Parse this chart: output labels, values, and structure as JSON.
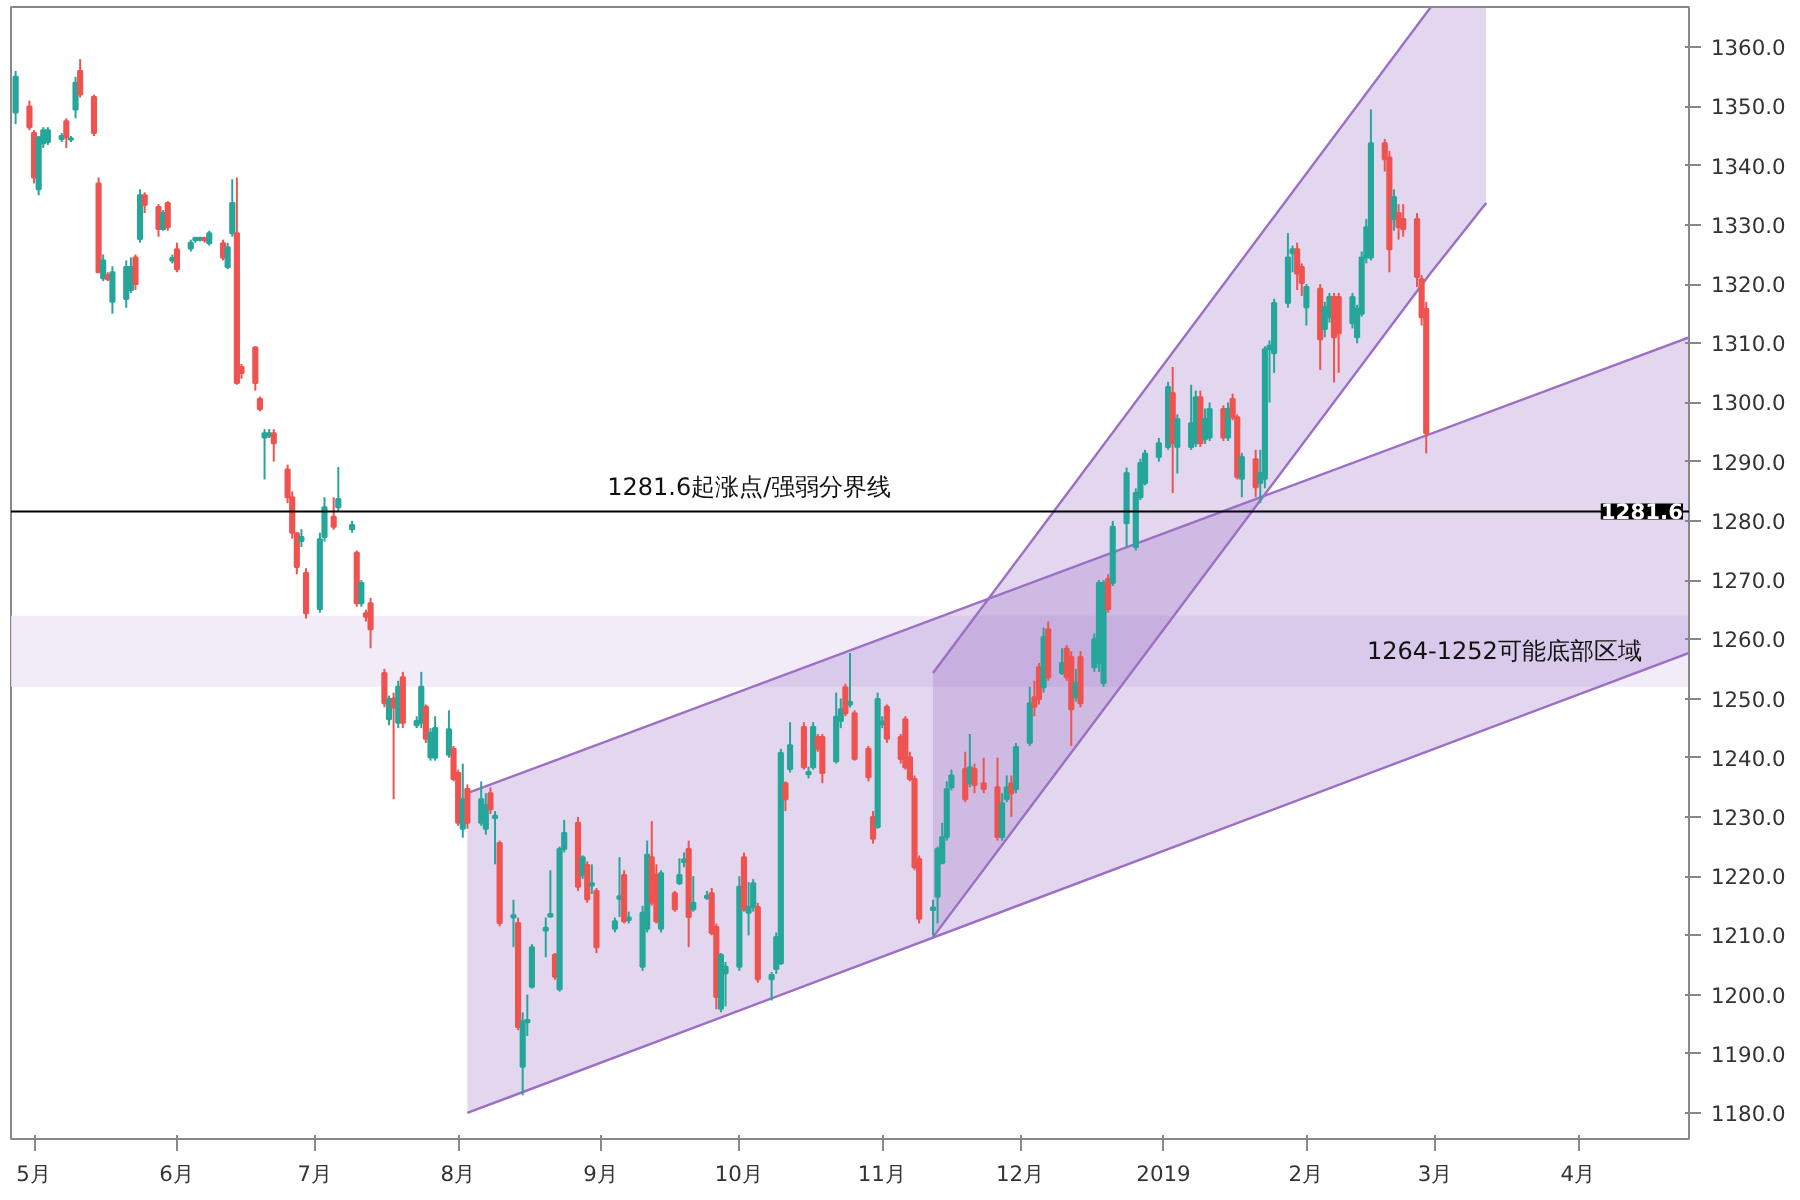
{
  "chart_data": {
    "type": "candlestick",
    "x": [
      "2018-04-27",
      "2018-04-30",
      "2018-05-01",
      "2018-05-02",
      "2018-05-03",
      "2018-05-04",
      "2018-05-07",
      "2018-05-08",
      "2018-05-09",
      "2018-05-10",
      "2018-05-11",
      "2018-05-14",
      "2018-05-15",
      "2018-05-16",
      "2018-05-17",
      "2018-05-18",
      "2018-05-21",
      "2018-05-22",
      "2018-05-23",
      "2018-05-24",
      "2018-05-25",
      "2018-05-28",
      "2018-05-29",
      "2018-05-30",
      "2018-05-31",
      "2018-06-01",
      "2018-06-04",
      "2018-06-05",
      "2018-06-06",
      "2018-06-07",
      "2018-06-08",
      "2018-06-11",
      "2018-06-12",
      "2018-06-13",
      "2018-06-14",
      "2018-06-15",
      "2018-06-18",
      "2018-06-19",
      "2018-06-20",
      "2018-06-21",
      "2018-06-22",
      "2018-06-25",
      "2018-06-26",
      "2018-06-27",
      "2018-06-28",
      "2018-06-29",
      "2018-07-02",
      "2018-07-03",
      "2018-07-05",
      "2018-07-06",
      "2018-07-09",
      "2018-07-10",
      "2018-07-11",
      "2018-07-12",
      "2018-07-13",
      "2018-07-16",
      "2018-07-17",
      "2018-07-18",
      "2018-07-19",
      "2018-07-20",
      "2018-07-23",
      "2018-07-24",
      "2018-07-25",
      "2018-07-26",
      "2018-07-27",
      "2018-07-30",
      "2018-07-31",
      "2018-08-01",
      "2018-08-02",
      "2018-08-03",
      "2018-08-06",
      "2018-08-07",
      "2018-08-08",
      "2018-08-09",
      "2018-08-10",
      "2018-08-13",
      "2018-08-14",
      "2018-08-15",
      "2018-08-16",
      "2018-08-17",
      "2018-08-20",
      "2018-08-21",
      "2018-08-22",
      "2018-08-23",
      "2018-08-24",
      "2018-08-27",
      "2018-08-28",
      "2018-08-29",
      "2018-08-30",
      "2018-08-31",
      "2018-09-04",
      "2018-09-05",
      "2018-09-06",
      "2018-09-07",
      "2018-09-10",
      "2018-09-11",
      "2018-09-12",
      "2018-09-13",
      "2018-09-14",
      "2018-09-17",
      "2018-09-18",
      "2018-09-19",
      "2018-09-20",
      "2018-09-21",
      "2018-09-24",
      "2018-09-25",
      "2018-09-26",
      "2018-09-27",
      "2018-09-28",
      "2018-10-01",
      "2018-10-02",
      "2018-10-03",
      "2018-10-04",
      "2018-10-05",
      "2018-10-08",
      "2018-10-09",
      "2018-10-10",
      "2018-10-11",
      "2018-10-12",
      "2018-10-15",
      "2018-10-16",
      "2018-10-17",
      "2018-10-18",
      "2018-10-19",
      "2018-10-22",
      "2018-10-23",
      "2018-10-24",
      "2018-10-25",
      "2018-10-26",
      "2018-10-29",
      "2018-10-30",
      "2018-10-31",
      "2018-11-01",
      "2018-11-02",
      "2018-11-05",
      "2018-11-06",
      "2018-11-07",
      "2018-11-08",
      "2018-11-09",
      "2018-11-12",
      "2018-11-13",
      "2018-11-14",
      "2018-11-15",
      "2018-11-16",
      "2018-11-19",
      "2018-11-20",
      "2018-11-21",
      "2018-11-23",
      "2018-11-26",
      "2018-11-27",
      "2018-11-28",
      "2018-11-29",
      "2018-11-30",
      "2018-12-03",
      "2018-12-04",
      "2018-12-05",
      "2018-12-06",
      "2018-12-07",
      "2018-12-10",
      "2018-12-11",
      "2018-12-12",
      "2018-12-13",
      "2018-12-14",
      "2018-12-17",
      "2018-12-18",
      "2018-12-19",
      "2018-12-20",
      "2018-12-21",
      "2018-12-24",
      "2018-12-26",
      "2018-12-27",
      "2018-12-28",
      "2018-12-31",
      "2019-01-02",
      "2019-01-03",
      "2019-01-04",
      "2019-01-07",
      "2019-01-08",
      "2019-01-09",
      "2019-01-10",
      "2019-01-11",
      "2019-01-14",
      "2019-01-15",
      "2019-01-16",
      "2019-01-17",
      "2019-01-18",
      "2019-01-21",
      "2019-01-22",
      "2019-01-23",
      "2019-01-24",
      "2019-01-25",
      "2019-01-28",
      "2019-01-29",
      "2019-01-30",
      "2019-01-31",
      "2019-02-01",
      "2019-02-04",
      "2019-02-05",
      "2019-02-06",
      "2019-02-07",
      "2019-02-08",
      "2019-02-11",
      "2019-02-12",
      "2019-02-13",
      "2019-02-14",
      "2019-02-15",
      "2019-02-18",
      "2019-02-19",
      "2019-02-20",
      "2019-02-21",
      "2019-02-22",
      "2019-02-25",
      "2019-02-26",
      "2019-02-27"
    ],
    "ohlc": [
      [
        1349,
        1356,
        1347,
        1355
      ],
      [
        1350,
        1351,
        1346,
        1346.5
      ],
      [
        1345.5,
        1346,
        1337,
        1338
      ],
      [
        1336,
        1345,
        1335,
        1344.8
      ],
      [
        1343.8,
        1346.5,
        1343,
        1346
      ],
      [
        1344,
        1346.5,
        1343.5,
        1346
      ],
      [
        1344.5,
        1345.5,
        1344,
        1345
      ],
      [
        1347.5,
        1348,
        1343,
        1344.8
      ],
      [
        1344.4,
        1345,
        1344,
        1344.6
      ],
      [
        1349.5,
        1355,
        1348,
        1354
      ],
      [
        1356,
        1358,
        1351.5,
        1352
      ],
      [
        1351.6,
        1352,
        1345,
        1345.5
      ],
      [
        1337,
        1338,
        1322,
        1322
      ],
      [
        1321,
        1325,
        1320.5,
        1324
      ],
      [
        1321.5,
        1322,
        1320.5,
        1320.8
      ],
      [
        1317,
        1323,
        1315,
        1322
      ],
      [
        1317.5,
        1324,
        1316,
        1322.9
      ],
      [
        1319,
        1324.5,
        1318.5,
        1322.9
      ],
      [
        1324.5,
        1325,
        1319,
        1320
      ],
      [
        1327.6,
        1336,
        1327,
        1335
      ],
      [
        1335,
        1335.5,
        1332,
        1333.4
      ],
      [
        1333,
        1333.5,
        1328,
        1329.3
      ],
      [
        1329.3,
        1332.5,
        1329,
        1332
      ],
      [
        1333.7,
        1334,
        1329,
        1329.6
      ],
      [
        1324,
        1325,
        1323.5,
        1324.4
      ],
      [
        1325.9,
        1327,
        1322,
        1322.5
      ],
      [
        1326,
        1327.5,
        1325.5,
        1327
      ],
      [
        1327.4,
        1328,
        1327,
        1327.8
      ],
      [
        1327.5,
        1328,
        1327.2,
        1327.8
      ],
      [
        1327.8,
        1328,
        1327,
        1327.4
      ],
      [
        1326.9,
        1329,
        1326.5,
        1328.6
      ],
      [
        1326.9,
        1327.5,
        1324,
        1324.5
      ],
      [
        1322.9,
        1327,
        1322.5,
        1326.2
      ],
      [
        1328.6,
        1337.7,
        1328,
        1333.7
      ],
      [
        1328.6,
        1338,
        1303,
        1303.3
      ],
      [
        1306,
        1306.5,
        1304,
        1305
      ],
      [
        1309.3,
        1309.5,
        1302,
        1303.3
      ],
      [
        1300.6,
        1301,
        1298.5,
        1298.9
      ],
      [
        1294.1,
        1295.5,
        1287,
        1294.8
      ],
      [
        1294.4,
        1295.5,
        1294,
        1294.8
      ],
      [
        1294.8,
        1295.5,
        1290,
        1293.1
      ],
      [
        1288.7,
        1289.5,
        1283,
        1284
      ],
      [
        1284,
        1285,
        1277,
        1278
      ],
      [
        1277.9,
        1278,
        1271,
        1272.2
      ],
      [
        1276.6,
        1278.6,
        1275.6,
        1277.3
      ],
      [
        1271.2,
        1272,
        1263.5,
        1264.4
      ],
      [
        1265.1,
        1278,
        1264.5,
        1276.9
      ],
      [
        1277.3,
        1284,
        1276.5,
        1282.3
      ],
      [
        1280.7,
        1284,
        1278.5,
        1279
      ],
      [
        1282.3,
        1289.1,
        1281.5,
        1283.7
      ],
      [
        1278.6,
        1280,
        1278,
        1279.3
      ],
      [
        1274.6,
        1275,
        1265.5,
        1266.1
      ],
      [
        1266.1,
        1270,
        1265.5,
        1269.5
      ],
      [
        1264.4,
        1265,
        1263,
        1263.8
      ],
      [
        1266.1,
        1267,
        1258.5,
        1261.7
      ],
      [
        1254.3,
        1255,
        1248.5,
        1249.2
      ],
      [
        1246.5,
        1250.5,
        1245.5,
        1249.9
      ],
      [
        1250,
        1251,
        1233,
        1248.5
      ],
      [
        1245.9,
        1253,
        1245,
        1252
      ],
      [
        1253.6,
        1254.5,
        1245,
        1245.9
      ],
      [
        1245.5,
        1247,
        1245,
        1246.2
      ],
      [
        1245.9,
        1254.5,
        1245,
        1252
      ],
      [
        1248.6,
        1249,
        1242.5,
        1243.2
      ],
      [
        1240.1,
        1245,
        1239.5,
        1244.2
      ],
      [
        1240,
        1247,
        1239.5,
        1245
      ],
      [
        1240.5,
        1248,
        1240,
        1244.8
      ],
      [
        1241.5,
        1242,
        1236,
        1236.4
      ],
      [
        1237.4,
        1238,
        1228.5,
        1229
      ],
      [
        1228,
        1239,
        1226.5,
        1233
      ],
      [
        1234.7,
        1235.5,
        1228,
        1229
      ],
      [
        1229,
        1236,
        1228.5,
        1233
      ],
      [
        1228,
        1234,
        1227,
        1232
      ],
      [
        1234,
        1235,
        1230.5,
        1231.3
      ],
      [
        1229.8,
        1231,
        1222,
        1230.2
      ],
      [
        1225.6,
        1226,
        1211.5,
        1212.1
      ],
      [
        1213,
        1216,
        1208,
        1213.4
      ],
      [
        1212.1,
        1213,
        1194,
        1194.5
      ],
      [
        1187.8,
        1197,
        1183,
        1195.5
      ],
      [
        1195.3,
        1200,
        1193,
        1195.7
      ],
      [
        1201.3,
        1208.5,
        1201,
        1208
      ],
      [
        1210.8,
        1213,
        1206.3,
        1211.3
      ],
      [
        1213.2,
        1221,
        1213,
        1213.6
      ],
      [
        1206.7,
        1207,
        1202.5,
        1203
      ],
      [
        1200.9,
        1225,
        1200.5,
        1224.6
      ],
      [
        1224.6,
        1229.5,
        1224,
        1227.3
      ],
      [
        1229,
        1230,
        1217.5,
        1218.2
      ],
      [
        1220.2,
        1223.5,
        1219.5,
        1223.2
      ],
      [
        1221.9,
        1222.5,
        1215.5,
        1216.1
      ],
      [
        1218.4,
        1222,
        1217,
        1218.8
      ],
      [
        1217.5,
        1218,
        1207,
        1208
      ],
      [
        1211.1,
        1213,
        1210.5,
        1212.4
      ],
      [
        1216.2,
        1223.2,
        1213.1,
        1216.6
      ],
      [
        1220.2,
        1221,
        1212,
        1212.4
      ],
      [
        1212.6,
        1214,
        1212,
        1213
      ],
      [
        1204.7,
        1215,
        1204,
        1213.8
      ],
      [
        1211.1,
        1226,
        1210.5,
        1223.6
      ],
      [
        1223.2,
        1229.3,
        1215,
        1215.5
      ],
      [
        1220.2,
        1222,
        1212,
        1212.4
      ],
      [
        1211.1,
        1221,
        1210.5,
        1220.5
      ],
      [
        1217.1,
        1217.5,
        1214,
        1214.4
      ],
      [
        1218.8,
        1223,
        1218.5,
        1220.2
      ],
      [
        1222.4,
        1224,
        1221.5,
        1222.8
      ],
      [
        1224.6,
        1226,
        1208,
        1213.1
      ],
      [
        1214.4,
        1220,
        1214,
        1215.5
      ],
      [
        1216.3,
        1217.5,
        1216,
        1216.7
      ],
      [
        1217.1,
        1218,
        1210,
        1210.4
      ],
      [
        1211.4,
        1212,
        1197.5,
        1199.6
      ],
      [
        1197.6,
        1207,
        1197,
        1206.7
      ],
      [
        1203.6,
        1205.5,
        1198,
        1204.7
      ],
      [
        1204.7,
        1220,
        1204,
        1218.2
      ],
      [
        1223.2,
        1224,
        1214,
        1214.4
      ],
      [
        1213.8,
        1219,
        1210,
        1214.8
      ],
      [
        1214.8,
        1219.5,
        1214,
        1218.8
      ],
      [
        1214.8,
        1215.5,
        1202,
        1202.6
      ],
      [
        1202.6,
        1203.8,
        1199,
        1203.3
      ],
      [
        1204.3,
        1210.5,
        1203.5,
        1209.7
      ],
      [
        1205.3,
        1241.5,
        1205,
        1240.8
      ],
      [
        1235.7,
        1236,
        1231,
        1233
      ],
      [
        1238.1,
        1246,
        1237.5,
        1242.1
      ],
      [
        1245.2,
        1246,
        1238,
        1238.4
      ],
      [
        1237.2,
        1238.5,
        1236.5,
        1237.6
      ],
      [
        1238.4,
        1246,
        1238,
        1245.2
      ],
      [
        1243.5,
        1244,
        1241,
        1241.5
      ],
      [
        1243.5,
        1244,
        1235.7,
        1237.4
      ],
      [
        1239.4,
        1251,
        1239,
        1246.9
      ],
      [
        1246.2,
        1250,
        1245,
        1248.2
      ],
      [
        1251.9,
        1252.5,
        1247,
        1247.5
      ],
      [
        1249,
        1257.7,
        1248.5,
        1249.4
      ],
      [
        1247.5,
        1248,
        1239.5,
        1239.8
      ],
      [
        1241.5,
        1242,
        1236,
        1236.7
      ],
      [
        1230,
        1231,
        1225.5,
        1226.3
      ],
      [
        1228.3,
        1251,
        1228,
        1249.9
      ],
      [
        1245.7,
        1247,
        1245,
        1246.1
      ],
      [
        1248.6,
        1249,
        1242.5,
        1243.2
      ],
      [
        1243.5,
        1244,
        1239,
        1239.8
      ],
      [
        1246.5,
        1247,
        1238,
        1238.4
      ],
      [
        1240.1,
        1241,
        1236,
        1236.4
      ],
      [
        1236.4,
        1237,
        1221,
        1221.5
      ],
      [
        1222.9,
        1223.5,
        1212,
        1212.8
      ],
      [
        1214.3,
        1216,
        1210,
        1214.7
      ],
      [
        1216.5,
        1225,
        1212,
        1224.6
      ],
      [
        1222.2,
        1229,
        1222,
        1226.6
      ],
      [
        1226.6,
        1236,
        1226,
        1234.7
      ],
      [
        1235,
        1238,
        1234.5,
        1237
      ],
      [
        1238.1,
        1241,
        1232.5,
        1233
      ],
      [
        1235.7,
        1244,
        1235,
        1238.4
      ],
      [
        1238.1,
        1239,
        1234,
        1235.4
      ],
      [
        1235.7,
        1240,
        1234,
        1234.7
      ],
      [
        1235,
        1240,
        1226,
        1226.6
      ],
      [
        1226.6,
        1234,
        1226,
        1232.3
      ],
      [
        1233,
        1237,
        1232.5,
        1235
      ],
      [
        1235.7,
        1237,
        1230,
        1234
      ],
      [
        1234.7,
        1242.5,
        1234,
        1241.8
      ],
      [
        1242.5,
        1252,
        1242,
        1249.2
      ],
      [
        1250.2,
        1253,
        1247,
        1248.6
      ],
      [
        1255.3,
        1256,
        1249,
        1249.9
      ],
      [
        1251.9,
        1262,
        1251,
        1260.4
      ],
      [
        1261.7,
        1263,
        1253,
        1253.6
      ],
      [
        1254.3,
        1258.5,
        1254,
        1256
      ],
      [
        1258.4,
        1259,
        1253,
        1253.6
      ],
      [
        1257,
        1258,
        1242,
        1248.2
      ],
      [
        1250.2,
        1255,
        1249.5,
        1252.6
      ],
      [
        1257,
        1258,
        1248.5,
        1249.2
      ],
      [
        1255.3,
        1261,
        1254.5,
        1260
      ],
      [
        1256,
        1270,
        1254.5,
        1269.5
      ],
      [
        1252.6,
        1270,
        1252,
        1269.5
      ],
      [
        1270.2,
        1271,
        1264.5,
        1265.1
      ],
      [
        1269.5,
        1280,
        1269,
        1279
      ],
      [
        1279.6,
        1289,
        1275.6,
        1288.1
      ],
      [
        1275.6,
        1285.5,
        1275,
        1284.7
      ],
      [
        1284,
        1290.5,
        1283.5,
        1289.8
      ],
      [
        1286.4,
        1292,
        1286,
        1291.4
      ],
      [
        1290.8,
        1294,
        1290,
        1293.1
      ],
      [
        1292.5,
        1303.5,
        1292,
        1302.6
      ],
      [
        1301.6,
        1306,
        1284.7,
        1293.1
      ],
      [
        1292.5,
        1298,
        1288,
        1297.2
      ],
      [
        1292.5,
        1303,
        1292,
        1296.5
      ],
      [
        1293.1,
        1302,
        1292.5,
        1300.9
      ],
      [
        1300.9,
        1302,
        1292.5,
        1293.1
      ],
      [
        1293.8,
        1299,
        1293,
        1297.2
      ],
      [
        1294.1,
        1300,
        1293.5,
        1298.9
      ],
      [
        1298.9,
        1299.5,
        1293.5,
        1294.1
      ],
      [
        1294.1,
        1300,
        1293.5,
        1298.9
      ],
      [
        1300.6,
        1301.5,
        1297,
        1297.5
      ],
      [
        1297.5,
        1298,
        1287,
        1287.4
      ],
      [
        1287.1,
        1291.5,
        1284,
        1290.8
      ],
      [
        1290.4,
        1292,
        1284,
        1285.7
      ],
      [
        1286.4,
        1292,
        1283,
        1288.1
      ],
      [
        1287.1,
        1309.5,
        1285.5,
        1309
      ],
      [
        1309,
        1310.5,
        1300,
        1309.6
      ],
      [
        1308.3,
        1317.5,
        1305,
        1316.8
      ],
      [
        1316.8,
        1328.6,
        1316,
        1324.5
      ],
      [
        1325.2,
        1326.5,
        1322,
        1325.9
      ],
      [
        1325.9,
        1327,
        1319,
        1321.8
      ],
      [
        1322.9,
        1323.5,
        1318,
        1320.2
      ],
      [
        1316.1,
        1320,
        1313,
        1319.5
      ],
      [
        1319.2,
        1320,
        1305.5,
        1310.7
      ],
      [
        1312.4,
        1317,
        1311,
        1316.1
      ],
      [
        1314.4,
        1318.5,
        1313.5,
        1317.8
      ],
      [
        1317.8,
        1318.5,
        1303.4,
        1311
      ],
      [
        1317.8,
        1318.5,
        1305,
        1311.7
      ],
      [
        1313.4,
        1318.5,
        1312.5,
        1317.8
      ],
      [
        1311,
        1316.5,
        1310,
        1315.8
      ],
      [
        1315,
        1325.5,
        1314.5,
        1324.5
      ],
      [
        1324.5,
        1331,
        1323.5,
        1329.6
      ],
      [
        1324.5,
        1349.5,
        1324,
        1343.8
      ],
      [
        1343.8,
        1344.5,
        1339,
        1341.1
      ],
      [
        1341.4,
        1342.5,
        1322,
        1325.9
      ],
      [
        1331,
        1336,
        1329,
        1334.7
      ],
      [
        1332,
        1333.5,
        1327.5,
        1329.6
      ],
      [
        1331,
        1333.5,
        1328,
        1329.3
      ],
      [
        1331,
        1332,
        1319.5,
        1321.2
      ],
      [
        1320.8,
        1321.5,
        1313,
        1314.4
      ],
      [
        1315.8,
        1317,
        1291.4,
        1294.8
      ]
    ],
    "series": [
      {
        "type": "line",
        "x": [
          "2018-08-03",
          "2019-04-25"
        ],
        "values": [
          1180,
          1257.7
        ],
        "lower": [
          1180,
          1257.7
        ],
        "upper": [
          1234,
          1311
        ],
        "color": "#9c6fc4"
      },
      {
        "type": "line",
        "x": [
          "2018-08-03",
          "2019-04-25"
        ],
        "values": [
          1234,
          1311
        ],
        "color": "#9c6fc4"
      },
      {
        "type": "line",
        "x": [
          "2018-11-12",
          "2019-02-28",
          "2019-03-12"
        ],
        "values": [
          1209.7,
          1321.9,
          1333.7
        ],
        "lower": [
          1209.7,
          1321.9,
          1333.7
        ],
        "upper": [
          1254.3,
          1366.8,
          1366.8
        ],
        "color": "#9c6fc4"
      },
      {
        "type": "line",
        "x": [
          "2018-11-12",
          "2019-02-28"
        ],
        "values": [
          1254.3,
          1366.8
        ],
        "color": "#9c6fc4"
      }
    ],
    "xlim": [
      "2018-04-26",
      "2019-04-25"
    ],
    "ylim": [
      1175.6,
      1366.8
    ],
    "xticks": [
      {
        "value": "2018-05-01",
        "label": "5月"
      },
      {
        "value": "2018-06-01",
        "label": "6月"
      },
      {
        "value": "2018-07-01",
        "label": "7月"
      },
      {
        "value": "2018-08-01",
        "label": "8月"
      },
      {
        "value": "2018-09-01",
        "label": "9月"
      },
      {
        "value": "2018-10-01",
        "label": "10月"
      },
      {
        "value": "2018-11-01",
        "label": "11月"
      },
      {
        "value": "2018-12-01",
        "label": "12月"
      },
      {
        "value": "2019-01-01",
        "label": "2019"
      },
      {
        "value": "2019-02-01",
        "label": "2月"
      },
      {
        "value": "2019-03-01",
        "label": "3月"
      },
      {
        "value": "2019-04-01",
        "label": "4月"
      }
    ],
    "yticks": [
      {
        "value": 1180,
        "label": "1180.0"
      },
      {
        "value": 1190,
        "label": "1190.0"
      },
      {
        "value": 1200,
        "label": "1200.0"
      },
      {
        "value": 1210,
        "label": "1210.0"
      },
      {
        "value": 1220,
        "label": "1220.0"
      },
      {
        "value": 1230,
        "label": "1230.0"
      },
      {
        "value": 1240,
        "label": "1240.0"
      },
      {
        "value": 1250,
        "label": "1250.0"
      },
      {
        "value": 1260,
        "label": "1260.0"
      },
      {
        "value": 1270,
        "label": "1270.0"
      },
      {
        "value": 1280,
        "label": "1280.0"
      },
      {
        "value": 1290,
        "label": "1290.0"
      },
      {
        "value": 1300,
        "label": "1300.0"
      },
      {
        "value": 1310,
        "label": "1310.0"
      },
      {
        "value": 1320,
        "label": "1320.0"
      },
      {
        "value": 1330,
        "label": "1330.0"
      },
      {
        "value": 1340,
        "label": "1340.0"
      },
      {
        "value": 1350,
        "label": "1350.0"
      },
      {
        "value": 1360,
        "label": "1360.0"
      }
    ],
    "ref_lines": [
      {
        "axis": "y",
        "value": 1281.6,
        "label": "1281.6起涨点/强弱分界线",
        "color": "#000000"
      }
    ],
    "bands": [
      {
        "axis": "y",
        "from": 1252,
        "to": 1264,
        "label": "1264-1252可能底部区域",
        "color": "#ede7f6"
      }
    ],
    "annotations": [
      {
        "text": "1281.6",
        "y": 1281.6
      }
    ],
    "grid": false
  }
}
